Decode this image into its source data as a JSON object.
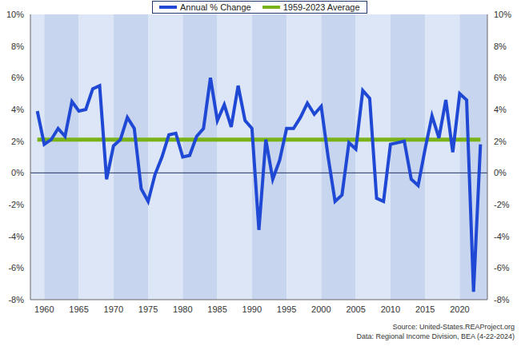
{
  "chart_data": {
    "type": "line",
    "x": [
      1959,
      1960,
      1961,
      1962,
      1963,
      1964,
      1965,
      1966,
      1967,
      1968,
      1969,
      1970,
      1971,
      1972,
      1973,
      1974,
      1975,
      1976,
      1977,
      1978,
      1979,
      1980,
      1981,
      1982,
      1983,
      1984,
      1985,
      1986,
      1987,
      1988,
      1989,
      1990,
      1991,
      1992,
      1993,
      1994,
      1995,
      1996,
      1997,
      1998,
      1999,
      2000,
      2001,
      2002,
      2003,
      2004,
      2005,
      2006,
      2007,
      2008,
      2009,
      2010,
      2011,
      2012,
      2013,
      2014,
      2015,
      2016,
      2017,
      2018,
      2019,
      2020,
      2021,
      2022,
      2023
    ],
    "series": [
      {
        "name": "Annual % Change",
        "color": "#1f48d4",
        "values": [
          3.9,
          1.8,
          2.1,
          2.8,
          2.3,
          4.5,
          3.9,
          4.0,
          5.3,
          5.5,
          -0.4,
          1.7,
          2.1,
          3.5,
          2.8,
          -1.0,
          -1.8,
          -0.1,
          1.0,
          2.4,
          2.5,
          1.0,
          1.1,
          2.3,
          2.8,
          6.0,
          3.3,
          4.3,
          2.9,
          5.5,
          3.3,
          2.8,
          -3.6,
          2.1,
          -0.4,
          0.8,
          2.8,
          2.8,
          3.5,
          4.4,
          3.7,
          4.2,
          1.0,
          -1.8,
          -1.4,
          1.9,
          1.5,
          5.2,
          4.7,
          -1.6,
          -1.8,
          1.8,
          1.9,
          2.0,
          -0.4,
          -0.8,
          1.5,
          3.6,
          2.2,
          4.6,
          1.3,
          5.0,
          4.6,
          -7.5,
          1.8
        ]
      },
      {
        "name": "1959-2023 Average",
        "color": "#7ab317",
        "values": [
          2.1,
          2.1,
          2.1,
          2.1,
          2.1,
          2.1,
          2.1,
          2.1,
          2.1,
          2.1,
          2.1,
          2.1,
          2.1,
          2.1,
          2.1,
          2.1,
          2.1,
          2.1,
          2.1,
          2.1,
          2.1,
          2.1,
          2.1,
          2.1,
          2.1,
          2.1,
          2.1,
          2.1,
          2.1,
          2.1,
          2.1,
          2.1,
          2.1,
          2.1,
          2.1,
          2.1,
          2.1,
          2.1,
          2.1,
          2.1,
          2.1,
          2.1,
          2.1,
          2.1,
          2.1,
          2.1,
          2.1,
          2.1,
          2.1,
          2.1,
          2.1,
          2.1,
          2.1,
          2.1,
          2.1,
          2.1,
          2.1,
          2.1,
          2.1,
          2.1,
          2.1,
          2.1,
          2.1,
          2.1,
          2.1
        ]
      }
    ],
    "xlim": [
      1958,
      2024
    ],
    "xticks": [
      1960,
      1965,
      1970,
      1975,
      1980,
      1985,
      1990,
      1995,
      2000,
      2005,
      2010,
      2015,
      2020
    ],
    "ylim": [
      -8,
      10
    ],
    "yticks": [
      {
        "value": -8,
        "label": "-8%"
      },
      {
        "value": -6,
        "label": "-6%"
      },
      {
        "value": -4,
        "label": "-4%"
      },
      {
        "value": -2,
        "label": "-2%"
      },
      {
        "value": 0,
        "label": "0%"
      },
      {
        "value": 2,
        "label": "2%"
      },
      {
        "value": 4,
        "label": "4%"
      },
      {
        "value": 6,
        "label": "6%"
      },
      {
        "value": 8,
        "label": "8%"
      },
      {
        "value": 10,
        "label": "10%"
      }
    ],
    "grid": true,
    "legend": "top",
    "annotations": [
      "Source: United-States.REAProject.org",
      "Data: Regional Income Division, BEA (4-22-2024)"
    ]
  }
}
